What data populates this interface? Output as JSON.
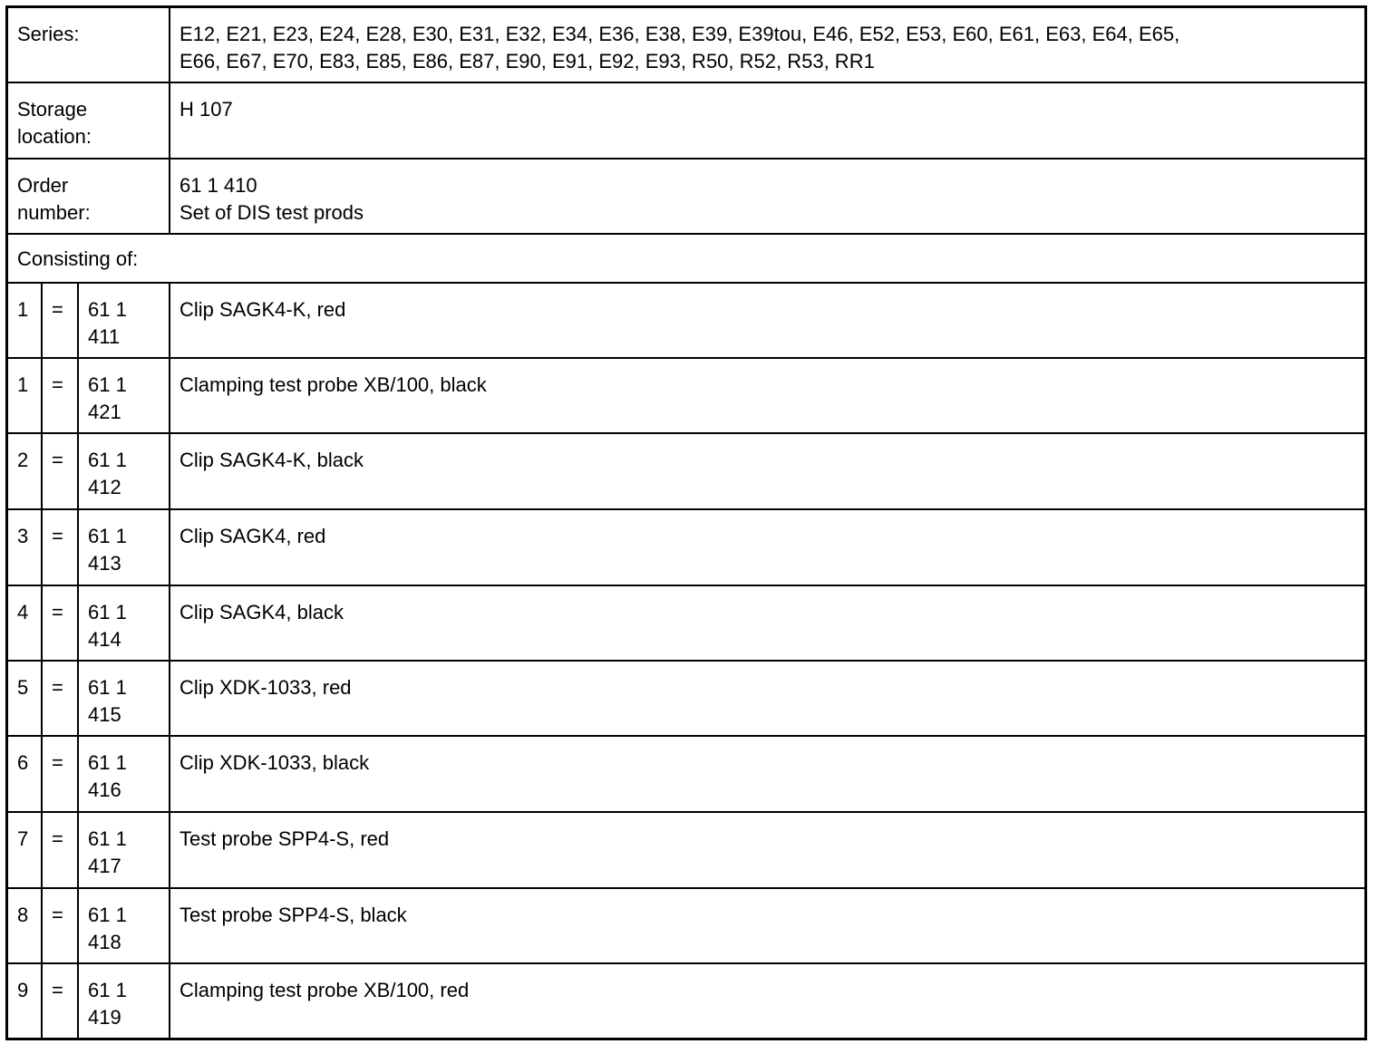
{
  "series": {
    "label": "Series:",
    "value": "E12, E21, E23, E24, E28, E30, E31, E32, E34, E36, E38, E39, E39tou, E46, E52, E53, E60, E61, E63, E64, E65,\nE66, E67, E70, E83, E85, E86, E87, E90, E91, E92, E93, R50, R52, R53, RR1"
  },
  "storage": {
    "label": "Storage\nlocation:",
    "value": "H 107"
  },
  "order": {
    "label": "Order\nnumber:",
    "value": "61 1 410\nSet of DIS test prods"
  },
  "consisting_label": "Consisting of:",
  "items": [
    {
      "qty": "1",
      "eq": "=",
      "part": "61 1\n411",
      "desc": "Clip SAGK4-K, red"
    },
    {
      "qty": "1",
      "eq": "=",
      "part": "61 1\n421",
      "desc": "Clamping test probe XB/100, black"
    },
    {
      "qty": "2",
      "eq": "=",
      "part": "61 1\n412",
      "desc": "Clip SAGK4-K, black"
    },
    {
      "qty": "3",
      "eq": "=",
      "part": "61 1\n413",
      "desc": "Clip SAGK4, red"
    },
    {
      "qty": "4",
      "eq": "=",
      "part": "61 1\n414",
      "desc": "Clip SAGK4, black"
    },
    {
      "qty": "5",
      "eq": "=",
      "part": "61 1\n415",
      "desc": "Clip XDK-1033, red"
    },
    {
      "qty": "6",
      "eq": "=",
      "part": "61 1\n416",
      "desc": "Clip XDK-1033, black"
    },
    {
      "qty": "7",
      "eq": "=",
      "part": "61 1\n417",
      "desc": "Test probe SPP4-S, red"
    },
    {
      "qty": "8",
      "eq": "=",
      "part": "61 1\n418",
      "desc": "Test probe SPP4-S, black"
    },
    {
      "qty": "9",
      "eq": "=",
      "part": "61 1\n419",
      "desc": "Clamping test probe XB/100, red"
    }
  ]
}
